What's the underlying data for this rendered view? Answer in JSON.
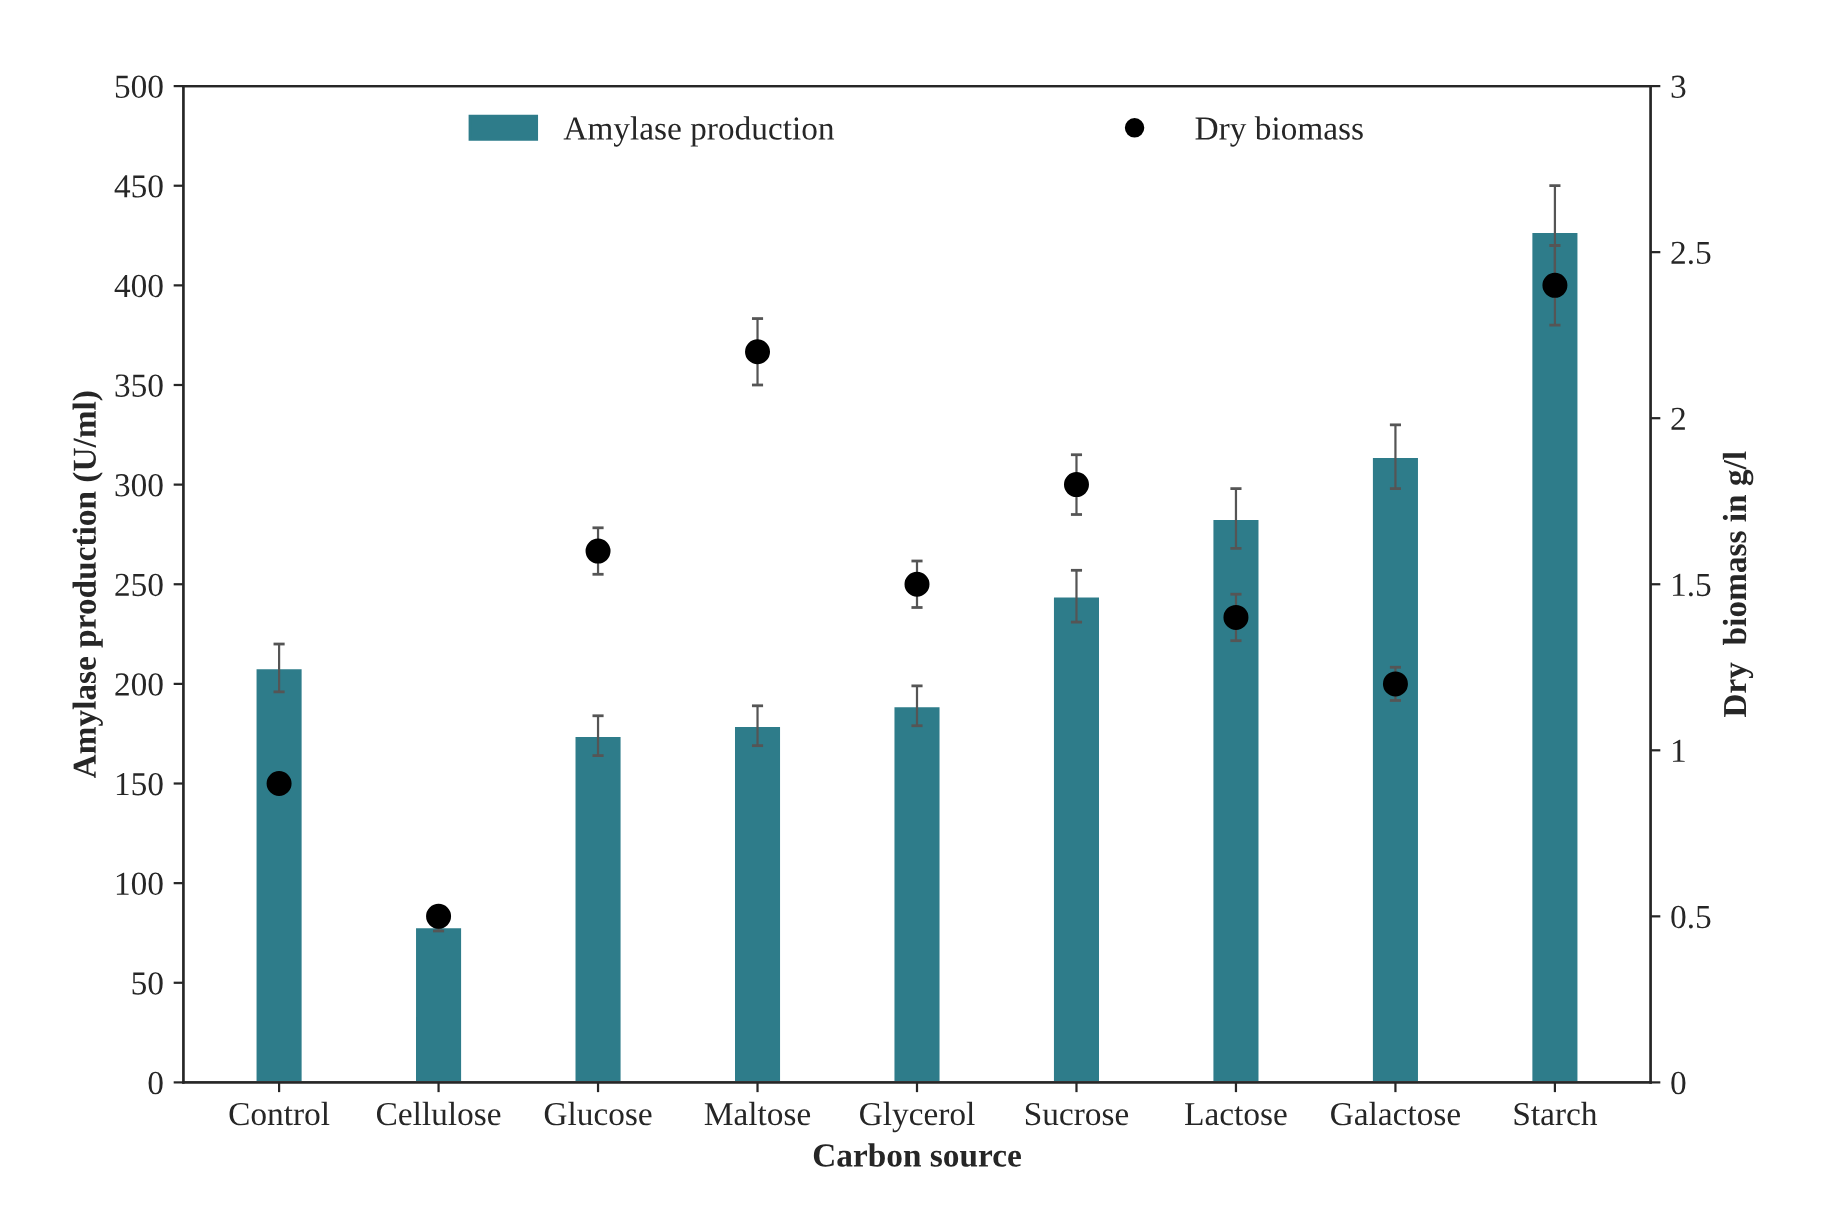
{
  "chart_data": {
    "type": "bar",
    "xlabel": "Carbon source",
    "ylabel": "Amylase production (U/ml)",
    "y2label": "Dry  biomass in g/l",
    "categories": [
      "Control",
      "Cellulose",
      "Glucose",
      "Maltose",
      "Glycerol",
      "Sucrose",
      "Lactose",
      "Galactose",
      "Starch"
    ],
    "series": [
      {
        "name": "Amylase production",
        "color": "#2e7c8a",
        "values": [
          208,
          78,
          174,
          179,
          189,
          244,
          283,
          314,
          427
        ],
        "errors": [
          12,
          2,
          10,
          10,
          10,
          13,
          15,
          16,
          23
        ]
      },
      {
        "name": "Dry biomass",
        "type": "scatter",
        "axis": "y2",
        "color": "#000000",
        "marker": "circle",
        "values": [
          0.9,
          0.5,
          1.6,
          2.2,
          1.5,
          1.8,
          1.4,
          1.2,
          2.4
        ],
        "errors": [
          0.03,
          0.01,
          0.07,
          0.1,
          0.07,
          0.09,
          0.07,
          0.05,
          0.12
        ]
      }
    ],
    "ylim": [
      0,
      500
    ],
    "yticks": [
      0,
      50,
      100,
      150,
      200,
      250,
      300,
      350,
      400,
      450,
      500
    ],
    "y2lim": [
      0,
      3
    ],
    "y2ticks": [
      0,
      0.5,
      1,
      1.5,
      2,
      2.5,
      3
    ],
    "legend": "top",
    "grid": false
  }
}
